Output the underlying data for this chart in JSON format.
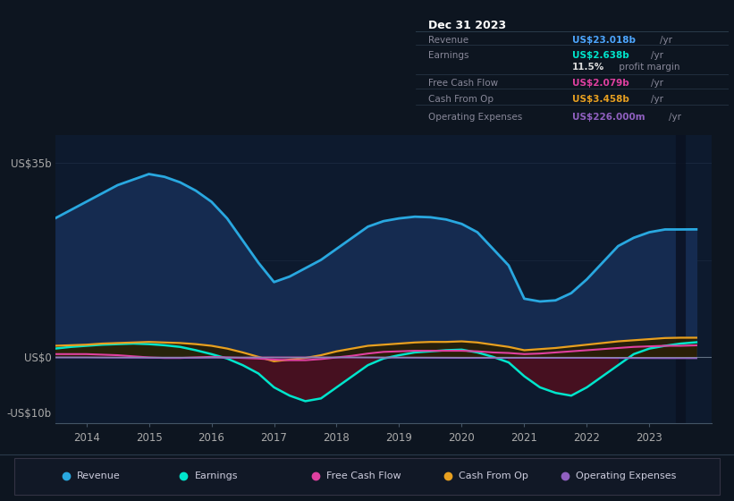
{
  "background_color": "#0d1520",
  "plot_bg_color": "#0d1a2e",
  "grid_color": "#1e2d45",
  "years": [
    2013.5,
    2013.75,
    2014.0,
    2014.25,
    2014.5,
    2014.75,
    2015.0,
    2015.25,
    2015.5,
    2015.75,
    2016.0,
    2016.25,
    2016.5,
    2016.75,
    2017.0,
    2017.25,
    2017.5,
    2017.75,
    2018.0,
    2018.25,
    2018.5,
    2018.75,
    2019.0,
    2019.25,
    2019.5,
    2019.75,
    2020.0,
    2020.25,
    2020.5,
    2020.75,
    2021.0,
    2021.25,
    2021.5,
    2021.75,
    2022.0,
    2022.25,
    2022.5,
    2022.75,
    2023.0,
    2023.25,
    2023.5,
    2023.75
  ],
  "revenue": [
    25.0,
    26.5,
    28.0,
    29.5,
    31.0,
    32.0,
    33.0,
    32.5,
    31.5,
    30.0,
    28.0,
    25.0,
    21.0,
    17.0,
    13.5,
    14.5,
    16.0,
    17.5,
    19.5,
    21.5,
    23.5,
    24.5,
    25.0,
    25.3,
    25.2,
    24.8,
    24.0,
    22.5,
    19.5,
    16.5,
    10.5,
    10.0,
    10.2,
    11.5,
    14.0,
    17.0,
    20.0,
    21.5,
    22.5,
    23.0,
    23.0,
    23.018
  ],
  "earnings": [
    1.5,
    1.8,
    2.0,
    2.2,
    2.3,
    2.4,
    2.3,
    2.1,
    1.8,
    1.2,
    0.5,
    -0.3,
    -1.5,
    -3.0,
    -5.5,
    -7.0,
    -8.0,
    -7.5,
    -5.5,
    -3.5,
    -1.5,
    -0.3,
    0.3,
    0.8,
    1.0,
    1.2,
    1.3,
    0.8,
    0.0,
    -1.0,
    -3.5,
    -5.5,
    -6.5,
    -7.0,
    -5.5,
    -3.5,
    -1.5,
    0.5,
    1.5,
    2.0,
    2.4,
    2.638
  ],
  "fcf": [
    0.5,
    0.5,
    0.5,
    0.4,
    0.3,
    0.1,
    -0.1,
    -0.2,
    -0.2,
    -0.1,
    0.0,
    -0.1,
    -0.2,
    -0.3,
    -0.5,
    -0.6,
    -0.6,
    -0.4,
    -0.1,
    0.2,
    0.6,
    0.9,
    1.0,
    1.1,
    1.1,
    1.1,
    1.1,
    1.0,
    0.8,
    0.7,
    0.5,
    0.6,
    0.8,
    1.0,
    1.2,
    1.4,
    1.6,
    1.8,
    1.9,
    2.0,
    2.0,
    2.079
  ],
  "cash_from_op": [
    2.0,
    2.1,
    2.2,
    2.4,
    2.5,
    2.6,
    2.7,
    2.6,
    2.5,
    2.3,
    2.0,
    1.5,
    0.8,
    0.0,
    -0.8,
    -0.5,
    -0.2,
    0.3,
    1.0,
    1.5,
    2.0,
    2.2,
    2.4,
    2.6,
    2.7,
    2.7,
    2.8,
    2.6,
    2.2,
    1.8,
    1.2,
    1.4,
    1.6,
    1.9,
    2.2,
    2.5,
    2.8,
    3.0,
    3.2,
    3.4,
    3.458,
    3.458
  ],
  "opex": [
    -0.1,
    -0.1,
    -0.1,
    -0.12,
    -0.13,
    -0.14,
    -0.15,
    -0.15,
    -0.15,
    -0.15,
    -0.14,
    -0.13,
    -0.12,
    -0.11,
    -0.1,
    -0.1,
    -0.1,
    -0.1,
    -0.1,
    -0.1,
    -0.11,
    -0.12,
    -0.13,
    -0.14,
    -0.15,
    -0.16,
    -0.17,
    -0.17,
    -0.17,
    -0.17,
    -0.17,
    -0.17,
    -0.17,
    -0.17,
    -0.17,
    -0.18,
    -0.19,
    -0.2,
    -0.21,
    -0.22,
    -0.226,
    -0.226
  ],
  "revenue_color": "#29a8e0",
  "revenue_fill": "#152b50",
  "earnings_color": "#00e5cc",
  "earnings_fill_pos": "#1a4a40",
  "earnings_fill_neg": "#4a1020",
  "fcf_color": "#e040a0",
  "cash_color": "#e8a020",
  "opex_color": "#9060c0",
  "ylim": [
    -12,
    40
  ],
  "xtick_start": 2013.5,
  "xlim_end": 2024.0,
  "xticks": [
    2014,
    2015,
    2016,
    2017,
    2018,
    2019,
    2020,
    2021,
    2022,
    2023
  ],
  "legend": [
    {
      "label": "Revenue",
      "color": "#29a8e0"
    },
    {
      "label": "Earnings",
      "color": "#00e5cc"
    },
    {
      "label": "Free Cash Flow",
      "color": "#e040a0"
    },
    {
      "label": "Cash From Op",
      "color": "#e8a020"
    },
    {
      "label": "Operating Expenses",
      "color": "#9060c0"
    }
  ],
  "info_box": {
    "date": "Dec 31 2023",
    "rows": [
      {
        "label": "Revenue",
        "value": "US$23.018b",
        "value_color": "#4da6ff",
        "extra": "/yr"
      },
      {
        "label": "Earnings",
        "value": "US$2.638b",
        "value_color": "#00e5cc",
        "extra": "/yr"
      },
      {
        "label": "",
        "value": "11.5%",
        "value_color": "#dddddd",
        "extra": " profit margin"
      },
      {
        "label": "Free Cash Flow",
        "value": "US$2.079b",
        "value_color": "#e040a0",
        "extra": "/yr"
      },
      {
        "label": "Cash From Op",
        "value": "US$3.458b",
        "value_color": "#e8a020",
        "extra": "/yr"
      },
      {
        "label": "Operating Expenses",
        "value": "US$226.000m",
        "value_color": "#9060c0",
        "extra": "/yr"
      }
    ]
  }
}
